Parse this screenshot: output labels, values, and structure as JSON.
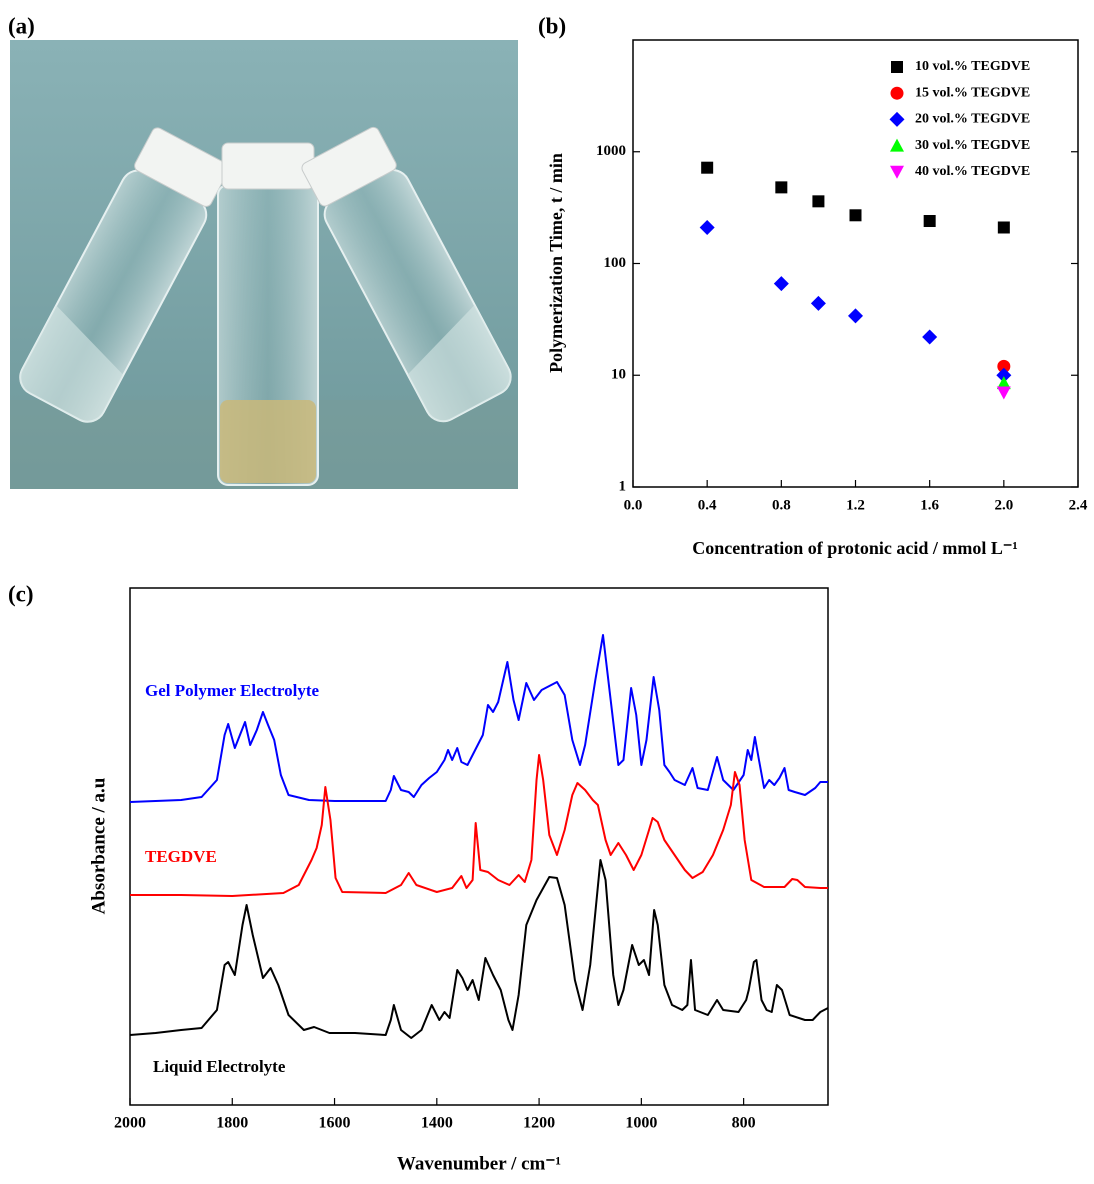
{
  "photo": {
    "panel_label": "(a)"
  },
  "chart_data": [
    {
      "type": "scatter",
      "panel_label": "(b)",
      "x_label": "Concentration of protonic acid / mmol L⁻¹",
      "y_label": "Polymerization Time, t / min",
      "xlim": [
        0,
        2.4
      ],
      "xticks": [
        {
          "value": 0,
          "label": "0.0"
        },
        0.4,
        0.8,
        1.2,
        1.6,
        {
          "value": 2,
          "label": "2.0"
        },
        2.4
      ],
      "ylim": [
        1,
        10000
      ],
      "yticks": [
        1,
        10,
        100,
        1000
      ],
      "log_y": true,
      "legend": "upper right",
      "series": [
        {
          "name": "10 vol.% TEGDVE",
          "color": "#000000",
          "marker": "square",
          "x": [
            0.4,
            0.8,
            1.0,
            1.2,
            1.6,
            2.0
          ],
          "values": [
            720,
            480,
            360,
            270,
            240,
            210
          ]
        },
        {
          "name": "15 vol.% TEGDVE",
          "color": "#ff0000",
          "marker": "circle",
          "x": [
            2.0
          ],
          "values": [
            12
          ]
        },
        {
          "name": "20 vol.% TEGDVE",
          "color": "#0000ff",
          "marker": "diamond",
          "x": [
            0.4,
            0.8,
            1.0,
            1.2,
            1.6,
            2.0
          ],
          "values": [
            210,
            66,
            44,
            34,
            22,
            10
          ]
        },
        {
          "name": "30 vol.% TEGDVE",
          "color": "#00ff00",
          "marker": "triangle-up",
          "x": [
            2.0
          ],
          "values": [
            8.5
          ]
        },
        {
          "name": "40 vol.% TEGDVE",
          "color": "#ff00ff",
          "marker": "triangle-down",
          "x": [
            2.0
          ],
          "values": [
            7
          ]
        }
      ]
    },
    {
      "type": "line",
      "panel_label": "(c)",
      "x_label": "Wavenumber / cm⁻¹",
      "y_label": "Absorbance / a.u",
      "xlim": [
        2000,
        635
      ],
      "xticks": [
        2000,
        1800,
        1600,
        1400,
        1200,
        1000,
        800
      ],
      "ylim": [
        0,
        517
      ],
      "series": [
        {
          "name": "Gel Polymer Electrolyte",
          "color": "#0000ff",
          "x": [
            2000,
            1900,
            1860,
            1830,
            1815,
            1808,
            1795,
            1775,
            1765,
            1752,
            1740,
            1730,
            1718,
            1705,
            1690,
            1650,
            1600,
            1560,
            1500,
            1490,
            1484,
            1470,
            1455,
            1445,
            1430,
            1415,
            1400,
            1385,
            1378,
            1370,
            1360,
            1352,
            1340,
            1330,
            1310,
            1300,
            1290,
            1280,
            1262,
            1250,
            1240,
            1225,
            1210,
            1195,
            1165,
            1150,
            1135,
            1120,
            1110,
            1090,
            1075,
            1060,
            1045,
            1035,
            1020,
            1010,
            1000,
            990,
            976,
            965,
            955,
            945,
            935,
            915,
            900,
            890,
            870,
            852,
            840,
            820,
            800,
            792,
            785,
            778,
            770,
            760,
            750,
            740,
            730,
            720,
            712,
            700,
            680,
            660,
            650,
            635
          ],
          "values": [
            303,
            305,
            308,
            325,
            370,
            381,
            357,
            383,
            360,
            375,
            393,
            380,
            365,
            330,
            310,
            305,
            304,
            304,
            304,
            315,
            329,
            315,
            313,
            308,
            320,
            327,
            333,
            345,
            355,
            345,
            357,
            343,
            340,
            350,
            370,
            400,
            393,
            403,
            443,
            405,
            385,
            422,
            405,
            415,
            423,
            410,
            365,
            340,
            360,
            425,
            470,
            405,
            340,
            345,
            417,
            390,
            340,
            365,
            428,
            395,
            340,
            333,
            325,
            320,
            337,
            317,
            315,
            348,
            325,
            315,
            330,
            355,
            345,
            368,
            345,
            317,
            325,
            320,
            327,
            337,
            315,
            313,
            310,
            317,
            323,
            323
          ]
        },
        {
          "name": "TEGDVE",
          "color": "#ff0000",
          "x": [
            2000,
            1900,
            1800,
            1700,
            1670,
            1645,
            1635,
            1625,
            1618,
            1608,
            1598,
            1585,
            1500,
            1470,
            1455,
            1440,
            1400,
            1370,
            1352,
            1342,
            1330,
            1324,
            1315,
            1300,
            1280,
            1258,
            1240,
            1228,
            1215,
            1205,
            1200,
            1192,
            1180,
            1165,
            1150,
            1135,
            1125,
            1110,
            1095,
            1085,
            1070,
            1060,
            1045,
            1030,
            1015,
            1000,
            985,
            978,
            968,
            955,
            935,
            915,
            900,
            880,
            860,
            840,
            825,
            817,
            808,
            798,
            785,
            760,
            720,
            705,
            695,
            680,
            650,
            635
          ],
          "values": [
            210,
            210,
            209,
            212,
            220,
            245,
            257,
            280,
            318,
            285,
            227,
            213,
            212,
            220,
            232,
            220,
            213,
            217,
            229,
            217,
            225,
            282,
            235,
            233,
            225,
            220,
            230,
            223,
            245,
            325,
            350,
            325,
            270,
            250,
            275,
            310,
            322,
            315,
            305,
            300,
            265,
            250,
            262,
            250,
            235,
            250,
            275,
            287,
            283,
            265,
            250,
            235,
            227,
            233,
            250,
            275,
            300,
            333,
            320,
            265,
            225,
            218,
            218,
            226,
            225,
            218,
            217,
            217
          ]
        },
        {
          "name": "Liquid Electrolyte",
          "color": "#000000",
          "x": [
            2000,
            1950,
            1900,
            1860,
            1830,
            1815,
            1808,
            1795,
            1780,
            1772,
            1760,
            1740,
            1725,
            1710,
            1690,
            1660,
            1640,
            1610,
            1560,
            1500,
            1490,
            1484,
            1470,
            1450,
            1430,
            1410,
            1395,
            1385,
            1375,
            1360,
            1350,
            1340,
            1330,
            1318,
            1305,
            1290,
            1275,
            1260,
            1252,
            1240,
            1225,
            1205,
            1180,
            1165,
            1150,
            1130,
            1115,
            1100,
            1080,
            1070,
            1055,
            1045,
            1035,
            1018,
            1005,
            995,
            985,
            975,
            968,
            955,
            940,
            920,
            910,
            903,
            895,
            870,
            852,
            840,
            810,
            795,
            790,
            780,
            775,
            765,
            755,
            745,
            735,
            725,
            710,
            680,
            665,
            650,
            635
          ],
          "values": [
            70,
            72,
            75,
            77,
            95,
            140,
            143,
            130,
            180,
            200,
            170,
            127,
            137,
            120,
            90,
            75,
            78,
            72,
            72,
            70,
            85,
            100,
            75,
            67,
            75,
            100,
            85,
            93,
            87,
            135,
            127,
            115,
            125,
            105,
            147,
            130,
            115,
            85,
            75,
            110,
            180,
            205,
            228,
            227,
            200,
            125,
            95,
            140,
            245,
            225,
            130,
            100,
            115,
            160,
            140,
            145,
            130,
            195,
            180,
            120,
            100,
            95,
            100,
            145,
            95,
            90,
            105,
            95,
            93,
            105,
            115,
            143,
            145,
            105,
            95,
            93,
            120,
            115,
            90,
            85,
            85,
            93,
            97
          ]
        }
      ]
    }
  ]
}
